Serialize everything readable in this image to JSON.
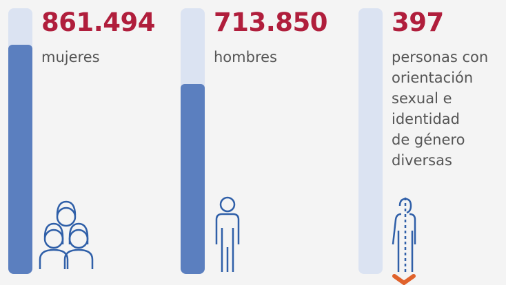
{
  "chart_data": {
    "type": "bar",
    "categories": [
      "mujeres",
      "hombres",
      "personas con\norientación\nsexual e\nidentidad\nde género\ndiversas"
    ],
    "values": [
      861494,
      713850,
      397
    ],
    "value_labels": [
      "861.494",
      "713.850",
      "397"
    ],
    "color": "#5b7fbf",
    "ylim": [
      0,
      1000000
    ]
  }
}
